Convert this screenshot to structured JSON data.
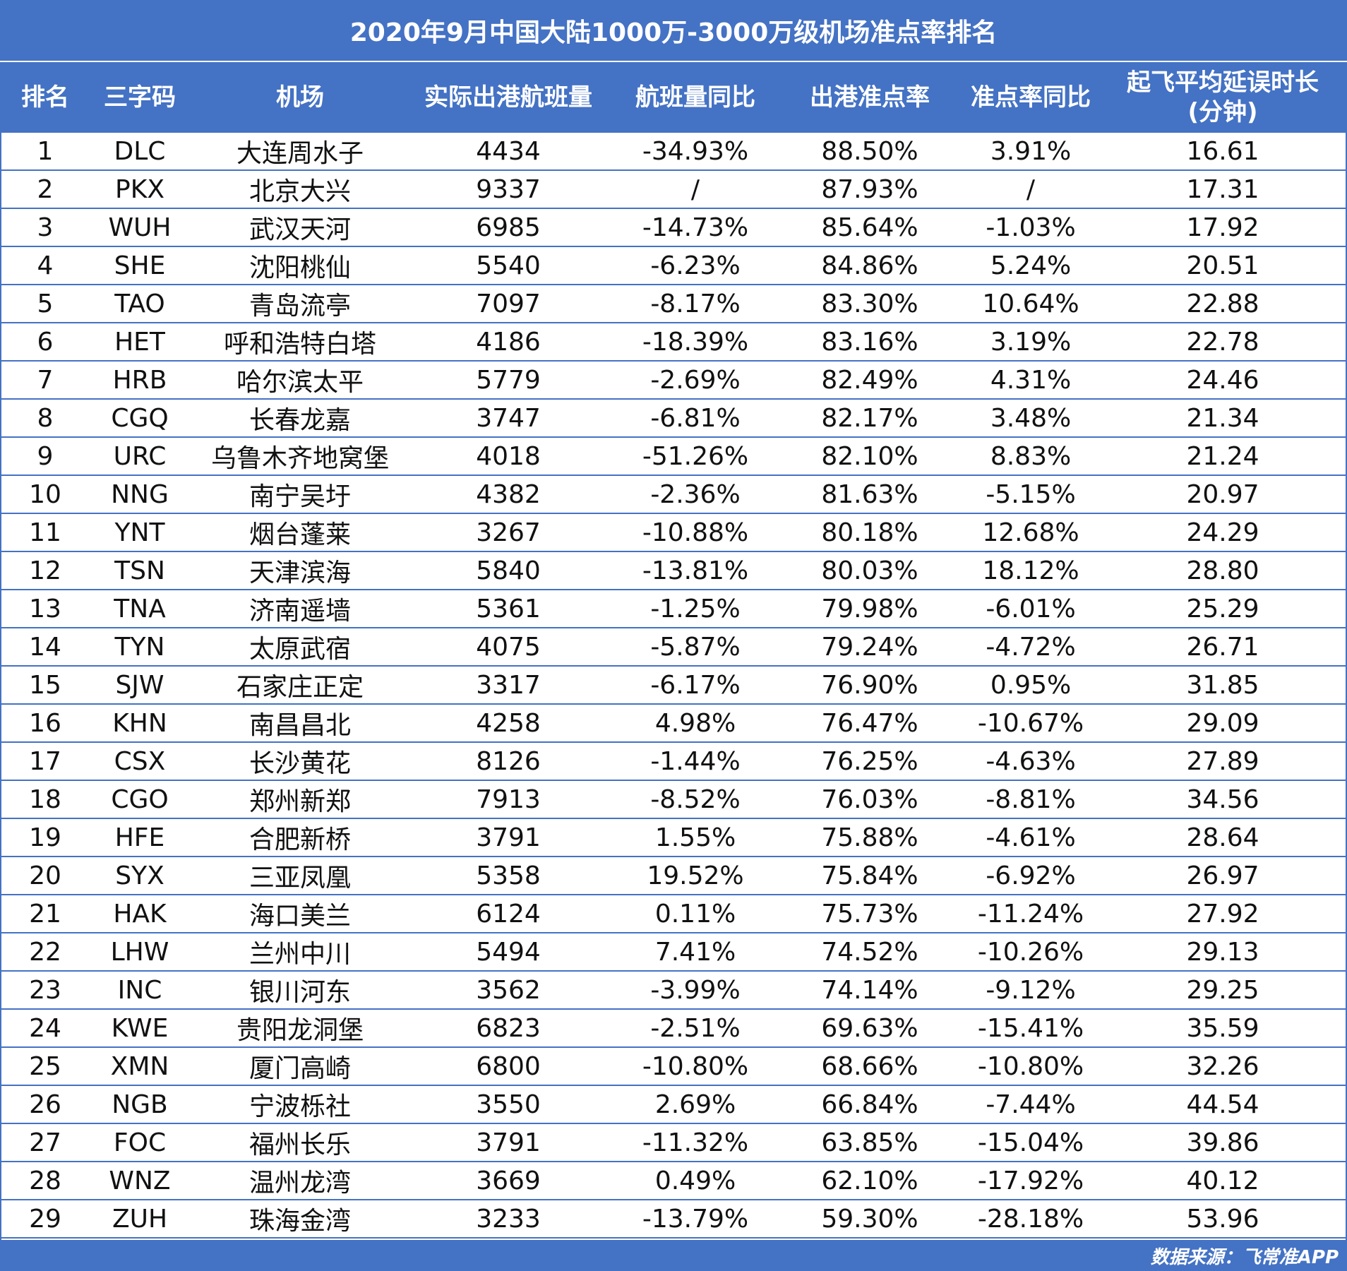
{
  "title": "2020年9月中国大陆1000万-3000万级机场准点率排名",
  "footer": "数据来源：飞常准APP",
  "colors": {
    "header_bg": "#4472c4",
    "header_text": "#ffffff",
    "grid": "#4472c4"
  },
  "chart_data": {
    "type": "table",
    "title": "2020年9月中国大陆1000万-3000万级机场准点率排名",
    "columns": [
      "排名",
      "三字码",
      "机场",
      "实际出港航班量",
      "航班量同比",
      "出港准点率",
      "准点率同比",
      "起飞平均延误时长\n(分钟)"
    ],
    "rows": [
      [
        "1",
        "DLC",
        "大连周水子",
        "4434",
        "-34.93%",
        "88.50%",
        "3.91%",
        "16.61"
      ],
      [
        "2",
        "PKX",
        "北京大兴",
        "9337",
        "/",
        "87.93%",
        "/",
        "17.31"
      ],
      [
        "3",
        "WUH",
        "武汉天河",
        "6985",
        "-14.73%",
        "85.64%",
        "-1.03%",
        "17.92"
      ],
      [
        "4",
        "SHE",
        "沈阳桃仙",
        "5540",
        "-6.23%",
        "84.86%",
        "5.24%",
        "20.51"
      ],
      [
        "5",
        "TAO",
        "青岛流亭",
        "7097",
        "-8.17%",
        "83.30%",
        "10.64%",
        "22.88"
      ],
      [
        "6",
        "HET",
        "呼和浩特白塔",
        "4186",
        "-18.39%",
        "83.16%",
        "3.19%",
        "22.78"
      ],
      [
        "7",
        "HRB",
        "哈尔滨太平",
        "5779",
        "-2.69%",
        "82.49%",
        "4.31%",
        "24.46"
      ],
      [
        "8",
        "CGQ",
        "长春龙嘉",
        "3747",
        "-6.81%",
        "82.17%",
        "3.48%",
        "21.34"
      ],
      [
        "9",
        "URC",
        "乌鲁木齐地窝堡",
        "4018",
        "-51.26%",
        "82.10%",
        "8.83%",
        "21.24"
      ],
      [
        "10",
        "NNG",
        "南宁吴圩",
        "4382",
        "-2.36%",
        "81.63%",
        "-5.15%",
        "20.97"
      ],
      [
        "11",
        "YNT",
        "烟台蓬莱",
        "3267",
        "-10.88%",
        "80.18%",
        "12.68%",
        "24.29"
      ],
      [
        "12",
        "TSN",
        "天津滨海",
        "5840",
        "-13.81%",
        "80.03%",
        "18.12%",
        "28.80"
      ],
      [
        "13",
        "TNA",
        "济南遥墙",
        "5361",
        "-1.25%",
        "79.98%",
        "-6.01%",
        "25.29"
      ],
      [
        "14",
        "TYN",
        "太原武宿",
        "4075",
        "-5.87%",
        "79.24%",
        "-4.72%",
        "26.71"
      ],
      [
        "15",
        "SJW",
        "石家庄正定",
        "3317",
        "-6.17%",
        "76.90%",
        "0.95%",
        "31.85"
      ],
      [
        "16",
        "KHN",
        "南昌昌北",
        "4258",
        "4.98%",
        "76.47%",
        "-10.67%",
        "29.09"
      ],
      [
        "17",
        "CSX",
        "长沙黄花",
        "8126",
        "-1.44%",
        "76.25%",
        "-4.63%",
        "27.89"
      ],
      [
        "18",
        "CGO",
        "郑州新郑",
        "7913",
        "-8.52%",
        "76.03%",
        "-8.81%",
        "34.56"
      ],
      [
        "19",
        "HFE",
        "合肥新桥",
        "3791",
        "1.55%",
        "75.88%",
        "-4.61%",
        "28.64"
      ],
      [
        "20",
        "SYX",
        "三亚凤凰",
        "5358",
        "19.52%",
        "75.84%",
        "-6.92%",
        "26.97"
      ],
      [
        "21",
        "HAK",
        "海口美兰",
        "6124",
        "0.11%",
        "75.73%",
        "-11.24%",
        "27.92"
      ],
      [
        "22",
        "LHW",
        "兰州中川",
        "5494",
        "7.41%",
        "74.52%",
        "-10.26%",
        "29.13"
      ],
      [
        "23",
        "INC",
        "银川河东",
        "3562",
        "-3.99%",
        "74.14%",
        "-9.12%",
        "29.25"
      ],
      [
        "24",
        "KWE",
        "贵阳龙洞堡",
        "6823",
        "-2.51%",
        "69.63%",
        "-15.41%",
        "35.59"
      ],
      [
        "25",
        "XMN",
        "厦门高崎",
        "6800",
        "-10.80%",
        "68.66%",
        "-10.80%",
        "32.26"
      ],
      [
        "26",
        "NGB",
        "宁波栎社",
        "3550",
        "2.69%",
        "66.84%",
        "-7.44%",
        "44.54"
      ],
      [
        "27",
        "FOC",
        "福州长乐",
        "3791",
        "-11.32%",
        "63.85%",
        "-15.04%",
        "39.86"
      ],
      [
        "28",
        "WNZ",
        "温州龙湾",
        "3669",
        "0.49%",
        "62.10%",
        "-17.92%",
        "40.12"
      ],
      [
        "29",
        "ZUH",
        "珠海金湾",
        "3233",
        "-13.79%",
        "59.30%",
        "-28.18%",
        "53.96"
      ]
    ]
  }
}
